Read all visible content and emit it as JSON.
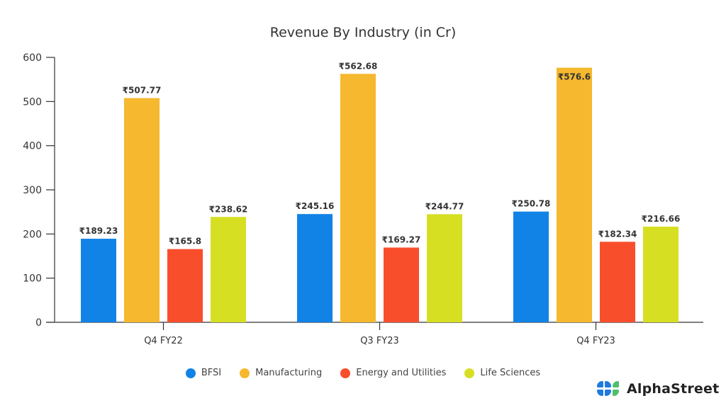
{
  "chart_data": {
    "type": "bar",
    "title": "Revenue By Industry (in Cr)",
    "xlabel": "",
    "ylabel": "",
    "ylim": [
      0,
      600
    ],
    "yticks": [
      0,
      100,
      200,
      300,
      400,
      500,
      600
    ],
    "grid": false,
    "legend_position": "bottom",
    "value_prefix": "₹",
    "categories": [
      "Q4 FY22",
      "Q3 FY23",
      "Q4 FY23"
    ],
    "series": [
      {
        "name": "BFSI",
        "color": "#1283e6",
        "values": [
          189.23,
          245.16,
          250.78
        ],
        "labels": [
          "₹189.23",
          "₹245.16",
          "₹250.78"
        ]
      },
      {
        "name": "Manufacturing",
        "color": "#f5b82e",
        "values": [
          507.77,
          562.68,
          576.6
        ],
        "labels": [
          "₹507.77",
          "₹562.68",
          "₹576.6"
        ]
      },
      {
        "name": "Energy and Utilities",
        "color": "#f94e2c",
        "values": [
          165.8,
          169.27,
          182.34
        ],
        "labels": [
          "₹165.8",
          "₹169.27",
          "₹182.34"
        ]
      },
      {
        "name": "Life Sciences",
        "color": "#d6df22",
        "values": [
          238.62,
          244.77,
          216.66
        ],
        "labels": [
          "₹238.62",
          "₹244.77",
          "₹216.66"
        ]
      }
    ]
  },
  "brand": {
    "name": "AlphaStreet",
    "colors": {
      "blue": "#1f7ae0",
      "green": "#4fbf6f"
    }
  }
}
